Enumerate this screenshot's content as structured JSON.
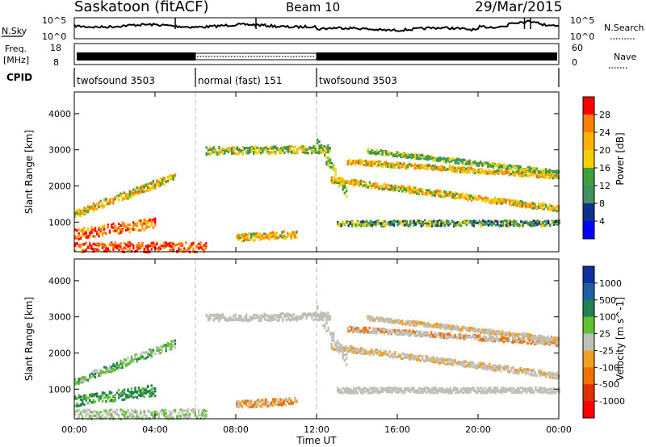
{
  "header": {
    "station": "Saskatoon (fitACF)",
    "beam": "Beam 10",
    "date": "29/Mar/2015"
  },
  "strip_labels": {
    "nsky": "N.Sky",
    "nsearch": "N.Search",
    "freq_line1": "Freq.",
    "freq_line2": "[MHz]",
    "nave": "Nave",
    "cpid": "CPID"
  },
  "strip_ticks": {
    "nsky_left": [
      "10^5",
      "10^0"
    ],
    "nsky_right": [
      "10^5",
      "10^0"
    ],
    "freq_left": [
      "18",
      "8"
    ],
    "nave_right": [
      "60",
      "0"
    ]
  },
  "cpid_segments": [
    {
      "label": "twofsound 3503",
      "start": 0,
      "end": 6
    },
    {
      "label": "normal (fast) 151",
      "start": 6,
      "end": 12
    },
    {
      "label": "twofsound 3503",
      "start": 12,
      "end": 24
    }
  ],
  "chart_data": [
    {
      "type": "heatmap",
      "name": "power",
      "ylabel": "Slant Range [km]",
      "ylim": [
        180,
        4600
      ],
      "yticks": [
        "1000",
        "2000",
        "3000",
        "4000"
      ],
      "colorbar_label": "Power [dB]",
      "colorbar_ticks": [
        "28",
        "24",
        "20",
        "16",
        "12",
        "8",
        "4"
      ],
      "colorbar_colors": [
        "#ff0000",
        "#ff7f00",
        "#ffb000",
        "#f0d000",
        "#40a040",
        "#409060",
        "#103090",
        "#0000ff"
      ]
    },
    {
      "type": "heatmap",
      "name": "velocity",
      "ylabel": "Slant Range [km]",
      "ylim": [
        180,
        4600
      ],
      "yticks": [
        "1000",
        "2000",
        "3000",
        "4000"
      ],
      "xlabel": "Time UT",
      "xticks": [
        "00:00",
        "04:00",
        "08:00",
        "12:00",
        "16:00",
        "20:00",
        "00:00"
      ],
      "colorbar_label": "Velocity [m s^-1]",
      "colorbar_ticks": [
        "1000",
        "500",
        "100",
        "25",
        "-25",
        "-100",
        "-500",
        "-1000"
      ],
      "colorbar_colors": [
        "#1030a0",
        "#2060a0",
        "#208050",
        "#60c030",
        "#c0c0b8",
        "#f0a020",
        "#f07000",
        "#e03000",
        "#ff0000"
      ]
    }
  ]
}
